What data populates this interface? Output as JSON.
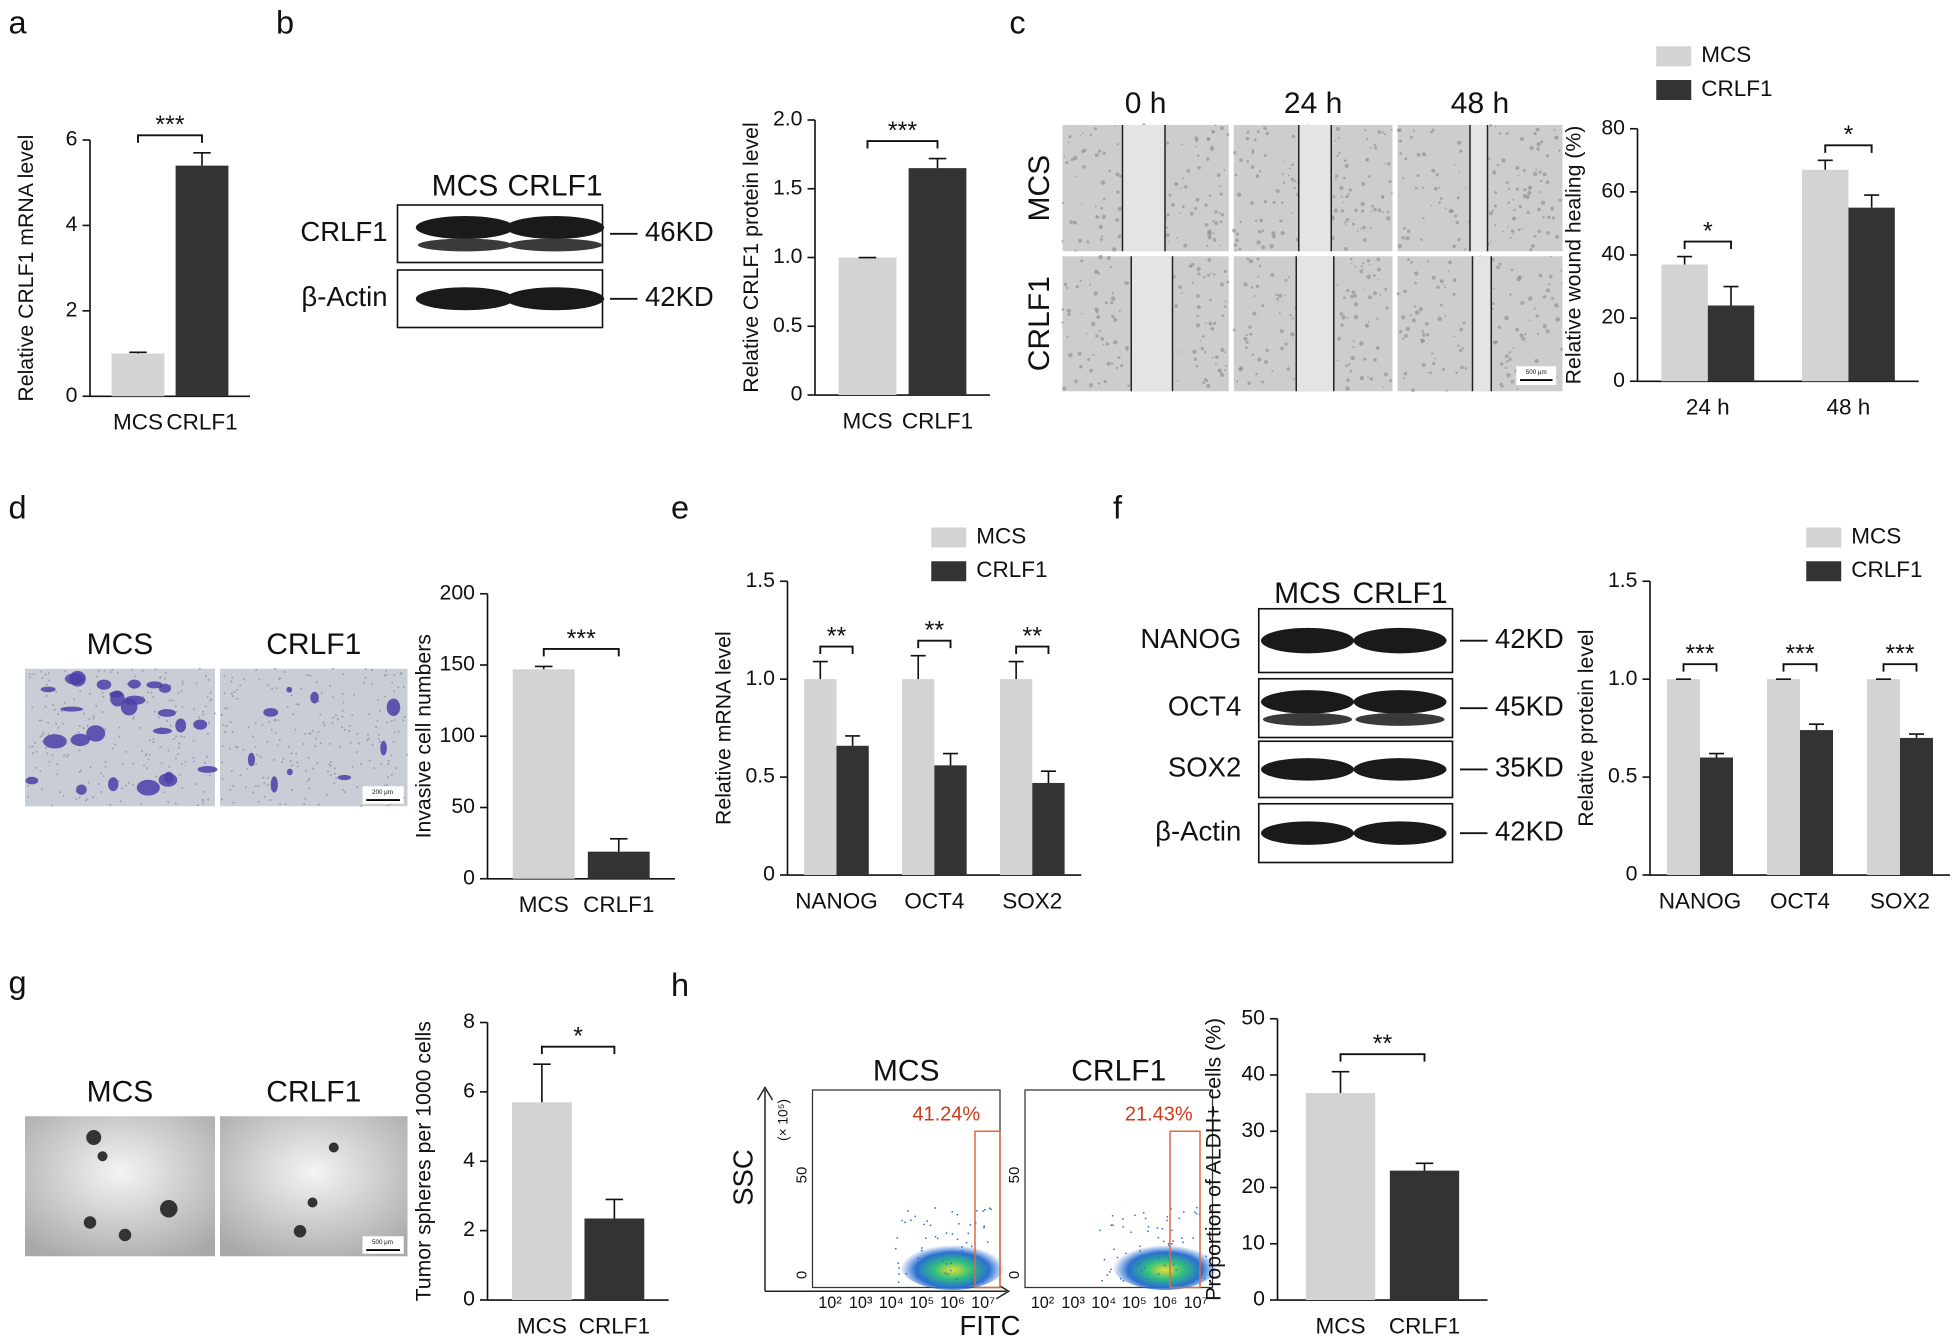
{
  "figure": {
    "letters": [
      "a",
      "b",
      "c",
      "d",
      "e",
      "f",
      "g",
      "h"
    ],
    "blot_b": {
      "lanes": [
        "MCS",
        "CRLF1"
      ],
      "rows": [
        "CRLF1",
        "β-Actin"
      ],
      "sizes": [
        "46KD",
        "42KD"
      ]
    },
    "images_c": {
      "times": [
        "0 h",
        "24 h",
        "48 h"
      ],
      "rows": [
        "MCS",
        "CRLF1"
      ],
      "scale": "500 μm"
    },
    "images_d": {
      "groups": [
        "MCS",
        "CRLF1"
      ],
      "scale": "200 μm"
    },
    "blot_f": {
      "lanes": [
        "MCS",
        "CRLF1"
      ],
      "rows": [
        "NANOG",
        "OCT4",
        "SOX2",
        "β-Actin"
      ],
      "sizes": [
        "42KD",
        "45KD",
        "35KD",
        "42KD"
      ]
    },
    "images_g": {
      "groups": [
        "MCS",
        "CRLF1"
      ],
      "scale": "500 μm"
    },
    "flow_h": {
      "groups": [
        "MCS",
        "CRLF1"
      ],
      "gates": [
        "41.24%",
        "21.43%"
      ],
      "y_title": "SSC",
      "x_title": "FITC",
      "y_unit": "(× 10⁵)",
      "y_ticks": [
        "50",
        "0"
      ],
      "x_ticks": [
        "10²",
        "10³",
        "10⁴",
        "10⁵",
        "10⁶",
        "10⁷"
      ]
    }
  },
  "chart_data": [
    {
      "type": "bar",
      "ylabel": "Relative CRLF1 mRNA level",
      "categories": [
        "MCS",
        "CRLF1"
      ],
      "values": [
        1.0,
        5.4
      ],
      "errors": [
        0.03,
        0.3
      ],
      "colors": [
        "#d3d3d3",
        "#333333"
      ],
      "ylim": [
        0,
        6
      ],
      "yticks": [
        0,
        2,
        4,
        6
      ],
      "significance": "***"
    },
    {
      "type": "bar",
      "ylabel": "Relative CRLF1 protein level",
      "categories": [
        "MCS",
        "CRLF1"
      ],
      "values": [
        1.0,
        1.65
      ],
      "errors": [
        0,
        0.07
      ],
      "colors": [
        "#d3d3d3",
        "#333333"
      ],
      "ylim": [
        0,
        2
      ],
      "yticks": [
        0,
        0.5,
        {
          "value": 1,
          "label": "1.0"
        },
        1.5,
        {
          "value": 2,
          "label": "2.0"
        }
      ],
      "significance": "***"
    },
    {
      "type": "grouped_bar",
      "ylabel": "Relative wound healing (%)",
      "categories": [
        "24 h",
        "48 h"
      ],
      "series": [
        {
          "name": "MCS",
          "color": "#d3d3d3",
          "values": [
            37,
            67
          ],
          "errors": [
            2.5,
            3
          ]
        },
        {
          "name": "CRLF1",
          "color": "#333333",
          "values": [
            24,
            55
          ],
          "errors": [
            6,
            4
          ]
        }
      ],
      "ylim": [
        0,
        80
      ],
      "yticks": [
        0,
        20,
        40,
        60,
        80
      ],
      "significance": [
        "*",
        "*"
      ],
      "legend": "top-left"
    },
    {
      "type": "bar",
      "ylabel": "Invasive cell numbers",
      "categories": [
        "MCS",
        "CRLF1"
      ],
      "values": [
        147,
        19
      ],
      "errors": [
        2,
        9
      ],
      "colors": [
        "#d3d3d3",
        "#333333"
      ],
      "ylim": [
        0,
        200
      ],
      "yticks": [
        0,
        50,
        100,
        150,
        200
      ],
      "significance": "***"
    },
    {
      "type": "grouped_bar",
      "ylabel": "Relative mRNA level",
      "categories": [
        "NANOG",
        "OCT4",
        "SOX2"
      ],
      "series": [
        {
          "name": "MCS",
          "color": "#d3d3d3",
          "values": [
            1.0,
            1.0,
            1.0
          ],
          "errors": [
            0.09,
            0.12,
            0.09
          ]
        },
        {
          "name": "CRLF1",
          "color": "#333333",
          "values": [
            0.66,
            0.56,
            0.47
          ],
          "errors": [
            0.05,
            0.06,
            0.06
          ]
        }
      ],
      "ylim": [
        0,
        1.5
      ],
      "yticks": [
        0,
        0.5,
        {
          "value": 1,
          "label": "1.0"
        },
        1.5
      ],
      "significance": [
        "**",
        "**",
        "**"
      ],
      "legend": "top-right"
    },
    {
      "type": "grouped_bar",
      "ylabel": "Relative protein level",
      "categories": [
        "NANOG",
        "OCT4",
        "SOX2"
      ],
      "series": [
        {
          "name": "MCS",
          "color": "#d3d3d3",
          "values": [
            1.0,
            1.0,
            1.0
          ],
          "errors": [
            0,
            0,
            0
          ]
        },
        {
          "name": "CRLF1",
          "color": "#333333",
          "values": [
            0.6,
            0.74,
            0.7
          ],
          "errors": [
            0.02,
            0.03,
            0.02
          ]
        }
      ],
      "ylim": [
        0,
        1.5
      ],
      "yticks": [
        0,
        0.5,
        {
          "value": 1,
          "label": "1.0"
        },
        1.5
      ],
      "significance": [
        "***",
        "***",
        "***"
      ],
      "legend": "top-right"
    },
    {
      "type": "bar",
      "ylabel": "Tumor spheres per 1000 cells",
      "categories": [
        "MCS",
        "CRLF1"
      ],
      "values": [
        5.7,
        2.35
      ],
      "errors": [
        1.1,
        0.55
      ],
      "colors": [
        "#d3d3d3",
        "#333333"
      ],
      "ylim": [
        0,
        8
      ],
      "yticks": [
        0,
        2,
        4,
        6,
        8
      ],
      "significance": "*"
    },
    {
      "type": "bar",
      "ylabel": "Proportion of ALDH+ cells (%)",
      "categories": [
        "MCS",
        "CRLF1"
      ],
      "values": [
        36.8,
        23
      ],
      "errors": [
        3.8,
        1.3
      ],
      "colors": [
        "#d3d3d3",
        "#333333"
      ],
      "ylim": [
        0,
        50
      ],
      "yticks": [
        0,
        10,
        20,
        30,
        40,
        50
      ],
      "significance": "**"
    }
  ]
}
